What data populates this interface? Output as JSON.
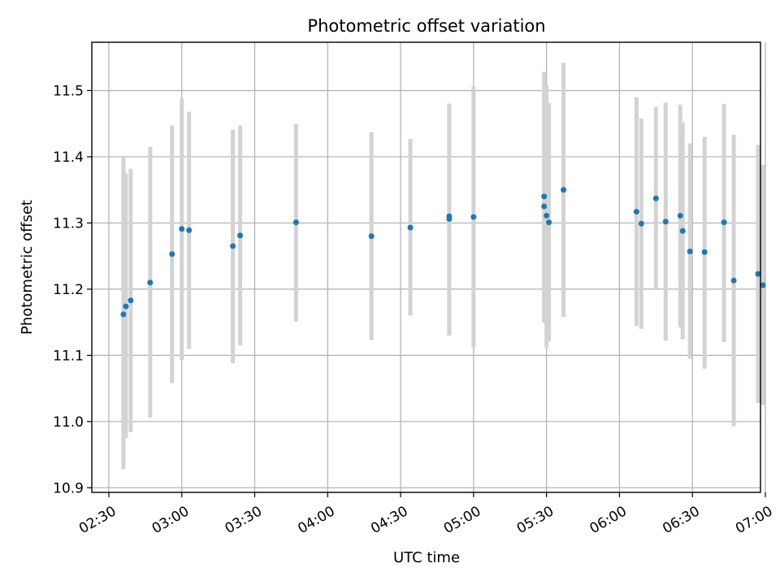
{
  "chart_data": {
    "type": "scatter",
    "title": "Photometric offset variation",
    "xlabel": "UTC time",
    "ylabel": "Photometric offset",
    "x_is_time": true,
    "xlim": [
      "02:23",
      "06:58"
    ],
    "ylim": [
      10.893,
      11.573
    ],
    "x_ticks": [
      "02:30",
      "03:00",
      "03:30",
      "04:00",
      "04:30",
      "05:00",
      "05:30",
      "06:00",
      "06:30",
      "07:00"
    ],
    "y_ticks": [
      10.9,
      11.0,
      11.1,
      11.2,
      11.3,
      11.4,
      11.5
    ],
    "y_tick_labels": [
      "10.9",
      "11.0",
      "11.1",
      "11.2",
      "11.3",
      "11.4",
      "11.5"
    ],
    "grid": true,
    "marker_color": "#1f77b4",
    "errorbar_color": "#d3d3d3",
    "points": [
      {
        "x": "02:36",
        "y": 11.162,
        "lo": 10.928,
        "hi": 11.4
      },
      {
        "x": "02:37",
        "y": 11.174,
        "lo": 10.975,
        "hi": 11.375
      },
      {
        "x": "02:39",
        "y": 11.183,
        "lo": 10.984,
        "hi": 11.382
      },
      {
        "x": "02:47",
        "y": 11.21,
        "lo": 11.006,
        "hi": 11.415
      },
      {
        "x": "02:56",
        "y": 11.253,
        "lo": 11.058,
        "hi": 11.447
      },
      {
        "x": "03:00",
        "y": 11.291,
        "lo": 11.093,
        "hi": 11.488
      },
      {
        "x": "03:03",
        "y": 11.289,
        "lo": 11.11,
        "hi": 11.468
      },
      {
        "x": "03:21",
        "y": 11.265,
        "lo": 11.088,
        "hi": 11.441
      },
      {
        "x": "03:24",
        "y": 11.281,
        "lo": 11.115,
        "hi": 11.447
      },
      {
        "x": "03:47",
        "y": 11.301,
        "lo": 11.151,
        "hi": 11.45
      },
      {
        "x": "04:18",
        "y": 11.28,
        "lo": 11.123,
        "hi": 11.437
      },
      {
        "x": "04:34",
        "y": 11.293,
        "lo": 11.16,
        "hi": 11.427
      },
      {
        "x": "04:50",
        "y": 11.31,
        "lo": 11.13,
        "hi": 11.48
      },
      {
        "x": "04:50",
        "y": 11.306,
        "lo": 11.13,
        "hi": 11.48
      },
      {
        "x": "05:00",
        "y": 11.309,
        "lo": 11.112,
        "hi": 11.506
      },
      {
        "x": "05:29",
        "y": 11.325,
        "lo": 11.151,
        "hi": 11.5
      },
      {
        "x": "05:29",
        "y": 11.34,
        "lo": 11.15,
        "hi": 11.528
      },
      {
        "x": "05:30",
        "y": 11.311,
        "lo": 11.112,
        "hi": 11.509
      },
      {
        "x": "05:31",
        "y": 11.301,
        "lo": 11.121,
        "hi": 11.481
      },
      {
        "x": "05:37",
        "y": 11.35,
        "lo": 11.158,
        "hi": 11.542
      },
      {
        "x": "06:07",
        "y": 11.317,
        "lo": 11.144,
        "hi": 11.49
      },
      {
        "x": "06:09",
        "y": 11.299,
        "lo": 11.14,
        "hi": 11.458
      },
      {
        "x": "06:15",
        "y": 11.337,
        "lo": 11.2,
        "hi": 11.475
      },
      {
        "x": "06:19",
        "y": 11.302,
        "lo": 11.122,
        "hi": 11.482
      },
      {
        "x": "06:25",
        "y": 11.311,
        "lo": 11.142,
        "hi": 11.479
      },
      {
        "x": "06:26",
        "y": 11.288,
        "lo": 11.124,
        "hi": 11.452
      },
      {
        "x": "06:29",
        "y": 11.257,
        "lo": 11.095,
        "hi": 11.42
      },
      {
        "x": "06:35",
        "y": 11.256,
        "lo": 11.08,
        "hi": 11.43
      },
      {
        "x": "06:43",
        "y": 11.301,
        "lo": 11.12,
        "hi": 11.48
      },
      {
        "x": "06:47",
        "y": 11.213,
        "lo": 10.993,
        "hi": 11.433
      },
      {
        "x": "06:57",
        "y": 11.223,
        "lo": 11.028,
        "hi": 11.418
      },
      {
        "x": "06:59",
        "y": 11.206,
        "lo": 11.025,
        "hi": 11.388
      }
    ]
  }
}
